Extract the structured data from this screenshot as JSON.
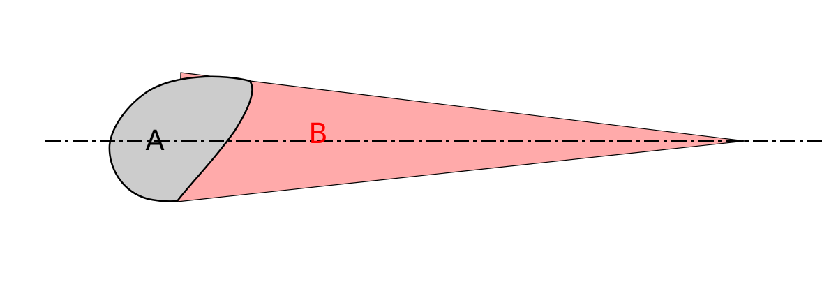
{
  "diagram": {
    "labels": {
      "a": "A",
      "b": "B"
    },
    "colors": {
      "region_a_fill": "#cccccc",
      "region_b_fill": "#ffaaaa",
      "label_a": "#000000",
      "label_b": "#ff0000",
      "outline": "#000000",
      "axis_line": "#000000"
    }
  }
}
